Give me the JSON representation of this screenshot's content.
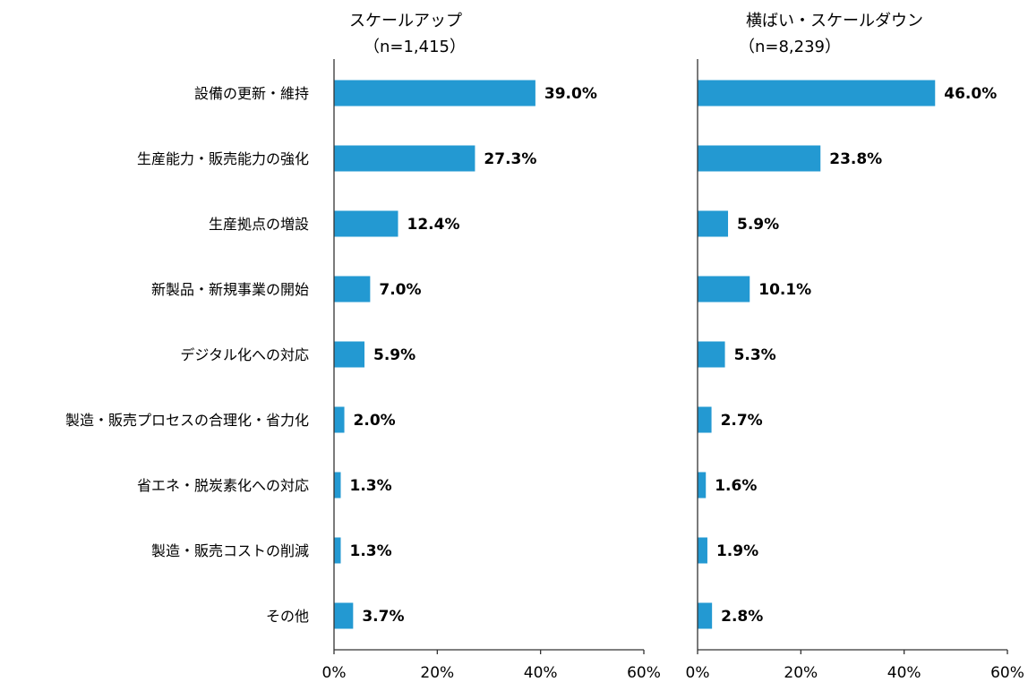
{
  "chart_data": [
    {
      "type": "bar",
      "orientation": "horizontal",
      "title": "スケールアップ",
      "subtitle": "（n=1,415）",
      "categories": [
        "設備の更新・維持",
        "生産能力・販売能力の強化",
        "生産拠点の増設",
        "新製品・新規事業の開始",
        "デジタル化への対応",
        "製造・販売プロセスの合理化・省力化",
        "省エネ・脱炭素化への対応",
        "製造・販売コストの削減",
        "その他"
      ],
      "values": [
        39.0,
        27.3,
        12.4,
        7.0,
        5.9,
        2.0,
        1.3,
        1.3,
        3.7
      ],
      "value_labels": [
        "39.0%",
        "27.3%",
        "12.4%",
        "7.0%",
        "5.9%",
        "2.0%",
        "1.3%",
        "1.3%",
        "3.7%"
      ],
      "xlim": [
        0,
        60
      ],
      "xticks": [
        "0%",
        "20%",
        "40%",
        "60%"
      ],
      "grid": false,
      "color": "#2399D2"
    },
    {
      "type": "bar",
      "orientation": "horizontal",
      "title": "横ばい・スケールダウン",
      "subtitle": "（n=8,239）",
      "categories": [
        "設備の更新・維持",
        "生産能力・販売能力の強化",
        "生産拠点の増設",
        "新製品・新規事業の開始",
        "デジタル化への対応",
        "製造・販売プロセスの合理化・省力化",
        "省エネ・脱炭素化への対応",
        "製造・販売コストの削減",
        "その他"
      ],
      "values": [
        46.0,
        23.8,
        5.9,
        10.1,
        5.3,
        2.7,
        1.6,
        1.9,
        2.8
      ],
      "value_labels": [
        "46.0%",
        "23.8%",
        "5.9%",
        "10.1%",
        "5.3%",
        "2.7%",
        "1.6%",
        "1.9%",
        "2.8%"
      ],
      "xlim": [
        0,
        60
      ],
      "xticks": [
        "0%",
        "20%",
        "40%",
        "60%"
      ],
      "grid": false,
      "color": "#2399D2"
    }
  ]
}
